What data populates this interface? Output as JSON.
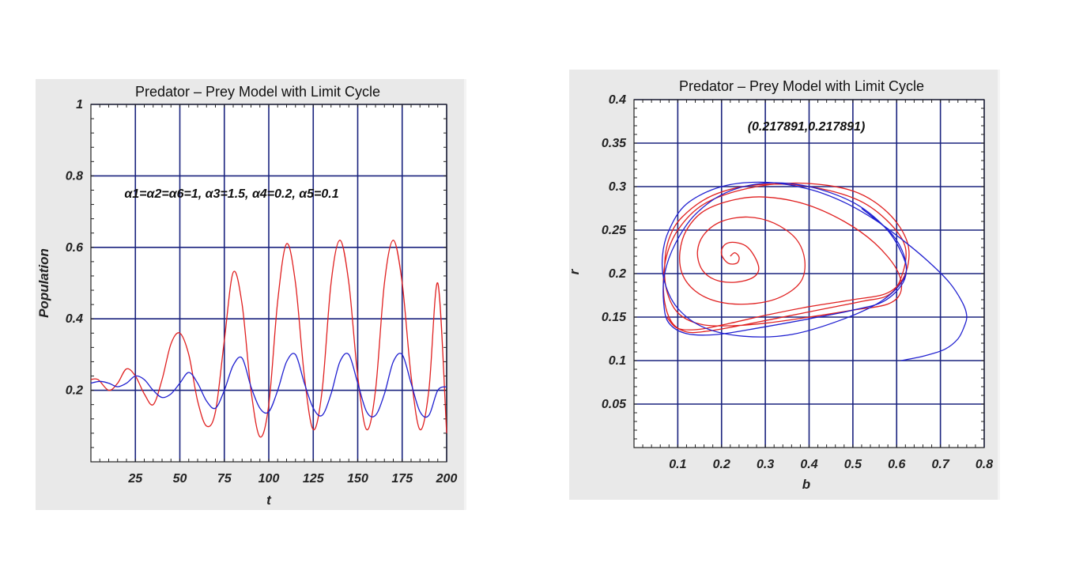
{
  "chart_data": [
    {
      "type": "line",
      "title": "Predator – Prey Model with Limit Cycle",
      "xlabel": "t",
      "ylabel": "Population",
      "xlim": [
        0,
        200
      ],
      "ylim": [
        0,
        1
      ],
      "x_ticks": [
        "25",
        "50",
        "75",
        "100",
        "125",
        "150",
        "175",
        "200"
      ],
      "y_ticks": [
        "0.2",
        "0.4",
        "0.6",
        "0.8",
        "1"
      ],
      "grid": true,
      "annotation": "α1=α2=α6=1, α3=1.5, α4=0.2, α5=0.1",
      "series": [
        {
          "color": "#e02020",
          "x": [
            0,
            4,
            10,
            15,
            20,
            25,
            30,
            35,
            40,
            45,
            50,
            55,
            60,
            65,
            70,
            75,
            80,
            85,
            90,
            95,
            100,
            105,
            110,
            115,
            120,
            125,
            130,
            135,
            140,
            145,
            150,
            155,
            160,
            165,
            170,
            175,
            180,
            185,
            190,
            195,
            200
          ],
          "y": [
            0.23,
            0.23,
            0.2,
            0.22,
            0.26,
            0.24,
            0.19,
            0.16,
            0.23,
            0.33,
            0.36,
            0.3,
            0.17,
            0.1,
            0.14,
            0.34,
            0.53,
            0.44,
            0.2,
            0.07,
            0.16,
            0.45,
            0.61,
            0.5,
            0.24,
            0.09,
            0.2,
            0.5,
            0.62,
            0.5,
            0.24,
            0.09,
            0.2,
            0.5,
            0.62,
            0.5,
            0.24,
            0.09,
            0.2,
            0.5,
            0.08
          ]
        },
        {
          "color": "#2020d0",
          "x": [
            0,
            5,
            10,
            15,
            20,
            25,
            30,
            35,
            40,
            45,
            50,
            55,
            60,
            65,
            70,
            75,
            80,
            85,
            90,
            95,
            100,
            105,
            110,
            115,
            120,
            125,
            130,
            135,
            140,
            145,
            150,
            155,
            160,
            165,
            170,
            175,
            180,
            185,
            190,
            195,
            200
          ],
          "y": [
            0.22,
            0.225,
            0.22,
            0.21,
            0.22,
            0.24,
            0.23,
            0.2,
            0.18,
            0.19,
            0.22,
            0.25,
            0.22,
            0.17,
            0.15,
            0.2,
            0.27,
            0.29,
            0.21,
            0.15,
            0.14,
            0.2,
            0.28,
            0.3,
            0.22,
            0.15,
            0.13,
            0.19,
            0.28,
            0.3,
            0.22,
            0.14,
            0.13,
            0.19,
            0.28,
            0.3,
            0.22,
            0.14,
            0.13,
            0.2,
            0.21
          ]
        }
      ]
    },
    {
      "type": "line",
      "title": "Predator – Prey Model with Limit Cycle",
      "xlabel": "b",
      "ylabel": "r",
      "xlim": [
        0,
        0.8
      ],
      "ylim": [
        0,
        0.4
      ],
      "x_ticks": [
        "0.1",
        "0.2",
        "0.3",
        "0.4",
        "0.5",
        "0.6",
        "0.7",
        "0.8"
      ],
      "y_ticks": [
        "0.05",
        "0.1",
        "0.15",
        "0.2",
        "0.25",
        "0.3",
        "0.35",
        "0.4"
      ],
      "grid": true,
      "annotation": "(0.217891,0.217891)",
      "series": [
        {
          "color": "#e02020",
          "x": [
            0.22,
            0.23,
            0.24,
            0.235,
            0.215,
            0.2,
            0.205,
            0.225,
            0.255,
            0.275,
            0.285,
            0.27,
            0.23,
            0.185,
            0.155,
            0.145,
            0.16,
            0.2,
            0.26,
            0.32,
            0.37,
            0.39,
            0.38,
            0.33,
            0.26,
            0.19,
            0.14,
            0.11,
            0.105,
            0.12,
            0.16,
            0.23,
            0.3,
            0.39,
            0.48,
            0.55,
            0.6,
            0.61,
            0.58,
            0.5,
            0.4,
            0.3,
            0.22,
            0.15,
            0.1,
            0.075,
            0.07,
            0.08,
            0.11,
            0.18,
            0.28,
            0.4,
            0.51,
            0.58,
            0.62,
            0.61,
            0.58,
            0.52,
            0.45,
            0.38,
            0.31,
            0.24,
            0.17,
            0.12,
            0.085,
            0.068,
            0.072,
            0.1,
            0.16,
            0.26,
            0.38,
            0.5,
            0.58,
            0.625,
            0.62,
            0.58,
            0.5,
            0.4,
            0.3,
            0.22,
            0.15,
            0.1,
            0.075
          ],
          "y": [
            0.22,
            0.224,
            0.219,
            0.212,
            0.212,
            0.222,
            0.232,
            0.236,
            0.232,
            0.22,
            0.205,
            0.195,
            0.19,
            0.193,
            0.205,
            0.225,
            0.245,
            0.26,
            0.265,
            0.258,
            0.24,
            0.215,
            0.19,
            0.172,
            0.165,
            0.168,
            0.18,
            0.2,
            0.225,
            0.25,
            0.272,
            0.285,
            0.288,
            0.28,
            0.26,
            0.235,
            0.205,
            0.18,
            0.165,
            0.158,
            0.15,
            0.143,
            0.14,
            0.142,
            0.155,
            0.18,
            0.21,
            0.24,
            0.265,
            0.29,
            0.302,
            0.3,
            0.285,
            0.26,
            0.23,
            0.195,
            0.175,
            0.168,
            0.161,
            0.154,
            0.147,
            0.14,
            0.134,
            0.133,
            0.145,
            0.175,
            0.215,
            0.25,
            0.28,
            0.298,
            0.304,
            0.295,
            0.27,
            0.235,
            0.2,
            0.178,
            0.17,
            0.162,
            0.152,
            0.143,
            0.136,
            0.137,
            0.15
          ]
        },
        {
          "color": "#2020d0",
          "x": [
            0.61,
            0.66,
            0.71,
            0.74,
            0.755,
            0.76,
            0.75,
            0.72,
            0.67,
            0.61,
            0.55,
            0.48,
            0.4,
            0.3,
            0.2,
            0.12,
            0.08,
            0.065,
            0.07,
            0.1,
            0.16,
            0.25,
            0.36,
            0.48,
            0.57,
            0.62,
            0.61,
            0.57,
            0.5,
            0.4,
            0.3,
            0.21,
            0.14,
            0.095,
            0.07,
            0.068,
            0.08,
            0.12,
            0.19,
            0.29,
            0.4,
            0.5,
            0.57,
            0.615,
            0.62,
            0.59,
            0.52
          ],
          "y": [
            0.1,
            0.105,
            0.113,
            0.125,
            0.14,
            0.152,
            0.167,
            0.19,
            0.215,
            0.24,
            0.262,
            0.282,
            0.297,
            0.305,
            0.3,
            0.28,
            0.25,
            0.22,
            0.19,
            0.16,
            0.138,
            0.128,
            0.13,
            0.148,
            0.17,
            0.198,
            0.225,
            0.255,
            0.282,
            0.3,
            0.304,
            0.293,
            0.268,
            0.235,
            0.2,
            0.165,
            0.143,
            0.131,
            0.13,
            0.138,
            0.148,
            0.158,
            0.168,
            0.19,
            0.215,
            0.245,
            0.275
          ]
        }
      ]
    }
  ]
}
